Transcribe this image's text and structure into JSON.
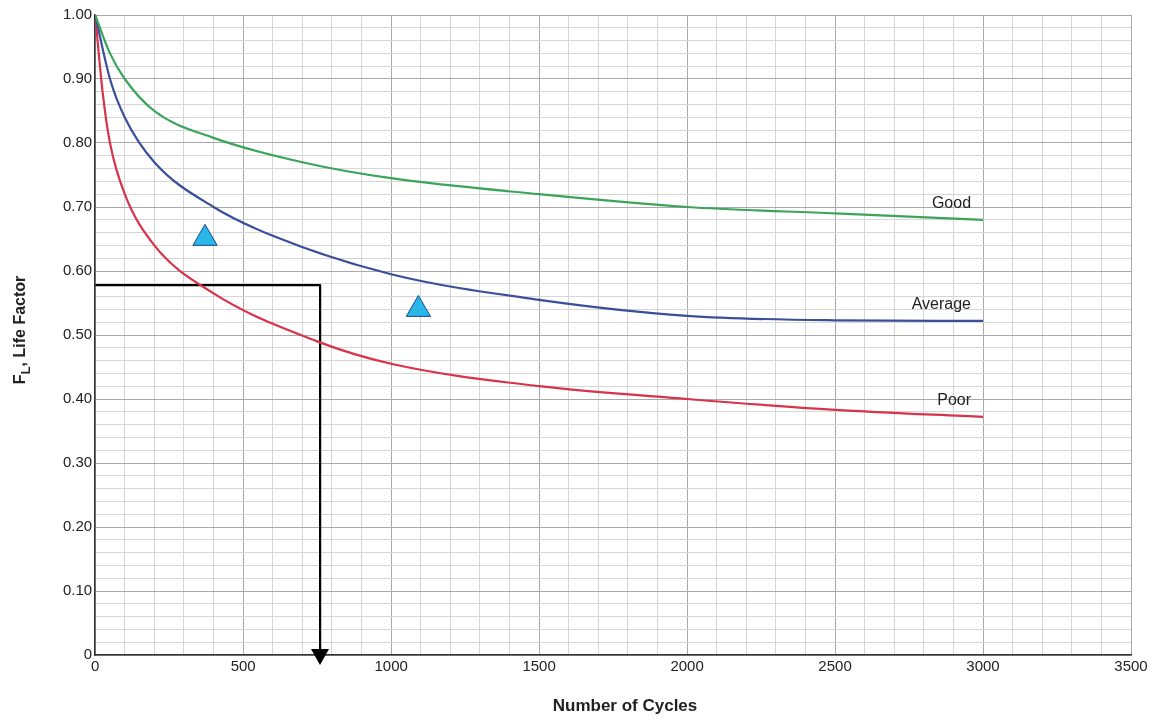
{
  "chart_data": {
    "type": "line",
    "xlabel": "Number of Cycles",
    "ylabel": "F$_{L}$, Life Factor",
    "xlim": [
      0,
      3500
    ],
    "ylim": [
      0,
      1
    ],
    "xticks": [
      0,
      {
        "value": 100,
        "label": null
      },
      {
        "value": 200,
        "label": null
      },
      {
        "value": 300,
        "label": null
      },
      {
        "value": 400,
        "label": null
      },
      500,
      {
        "value": 600,
        "label": null
      },
      {
        "value": 700,
        "label": null
      },
      {
        "value": 800,
        "label": null
      },
      {
        "value": 900,
        "label": null
      },
      1000,
      {
        "value": 1100,
        "label": null
      },
      {
        "value": 1200,
        "label": null
      },
      {
        "value": 1300,
        "label": null
      },
      {
        "value": 1400,
        "label": null
      },
      1500,
      {
        "value": 1600,
        "label": null
      },
      {
        "value": 1700,
        "label": null
      },
      {
        "value": 1800,
        "label": null
      },
      {
        "value": 1900,
        "label": null
      },
      2000,
      {
        "value": 2100,
        "label": null
      },
      {
        "value": 2200,
        "label": null
      },
      {
        "value": 2300,
        "label": null
      },
      {
        "value": 2400,
        "label": null
      },
      2500,
      {
        "value": 2600,
        "label": null
      },
      {
        "value": 2700,
        "label": null
      },
      {
        "value": 2800,
        "label": null
      },
      {
        "value": 2900,
        "label": null
      },
      3000,
      {
        "value": 3100,
        "label": null
      },
      {
        "value": 3200,
        "label": null
      },
      {
        "value": 3300,
        "label": null
      },
      {
        "value": 3400,
        "label": null
      },
      3500
    ],
    "yticks": [
      0,
      {
        "value": 0.02,
        "label": null
      },
      {
        "value": 0.04,
        "label": null
      },
      {
        "value": 0.06,
        "label": null
      },
      {
        "value": 0.08,
        "label": null
      },
      {
        "value": 0.1,
        "label": "0.10"
      },
      {
        "value": 0.12,
        "label": null
      },
      {
        "value": 0.14,
        "label": null
      },
      {
        "value": 0.16,
        "label": null
      },
      {
        "value": 0.18,
        "label": null
      },
      {
        "value": 0.2,
        "label": "0.20"
      },
      {
        "value": 0.22,
        "label": null
      },
      {
        "value": 0.24,
        "label": null
      },
      {
        "value": 0.26,
        "label": null
      },
      {
        "value": 0.28,
        "label": null
      },
      {
        "value": 0.3,
        "label": "0.30"
      },
      {
        "value": 0.32,
        "label": null
      },
      {
        "value": 0.34,
        "label": null
      },
      {
        "value": 0.36,
        "label": null
      },
      {
        "value": 0.38,
        "label": null
      },
      {
        "value": 0.4,
        "label": "0.40"
      },
      {
        "value": 0.42,
        "label": null
      },
      {
        "value": 0.44,
        "label": null
      },
      {
        "value": 0.46,
        "label": null
      },
      {
        "value": 0.48,
        "label": null
      },
      {
        "value": 0.5,
        "label": "0.50"
      },
      {
        "value": 0.52,
        "label": null
      },
      {
        "value": 0.54,
        "label": null
      },
      {
        "value": 0.56,
        "label": null
      },
      {
        "value": 0.58,
        "label": null
      },
      {
        "value": 0.6,
        "label": "0.60"
      },
      {
        "value": 0.62,
        "label": null
      },
      {
        "value": 0.64,
        "label": null
      },
      {
        "value": 0.66,
        "label": null
      },
      {
        "value": 0.68,
        "label": null
      },
      {
        "value": 0.7,
        "label": "0.70"
      },
      {
        "value": 0.72,
        "label": null
      },
      {
        "value": 0.74,
        "label": null
      },
      {
        "value": 0.76,
        "label": null
      },
      {
        "value": 0.78,
        "label": null
      },
      {
        "value": 0.8,
        "label": "0.80"
      },
      {
        "value": 0.82,
        "label": null
      },
      {
        "value": 0.84,
        "label": null
      },
      {
        "value": 0.86,
        "label": null
      },
      {
        "value": 0.88,
        "label": null
      },
      {
        "value": 0.9,
        "label": "0.90"
      },
      {
        "value": 0.92,
        "label": null
      },
      {
        "value": 0.94,
        "label": null
      },
      {
        "value": 0.96,
        "label": null
      },
      {
        "value": 0.98,
        "label": null
      },
      {
        "value": 1,
        "label": "1.00"
      }
    ],
    "grid": true,
    "legend": false,
    "marker": "none",
    "series": [
      {
        "name": "Good",
        "color": "#3aa55a",
        "x": [
          0,
          50,
          100,
          200,
          400,
          700,
          1000,
          1500,
          2000,
          2500,
          3000
        ],
        "values": [
          1.0,
          0.94,
          0.9,
          0.85,
          0.808,
          0.77,
          0.745,
          0.72,
          0.7,
          0.69,
          0.68
        ]
      },
      {
        "name": "Average",
        "color": "#3a4f9a",
        "x": [
          0,
          50,
          100,
          200,
          400,
          600,
          1000,
          1500,
          2000,
          2500,
          3000
        ],
        "values": [
          1.0,
          0.9,
          0.84,
          0.77,
          0.7,
          0.655,
          0.595,
          0.555,
          0.53,
          0.523,
          0.522
        ]
      },
      {
        "name": "Poor",
        "color": "#d8334a",
        "x": [
          0,
          25,
          50,
          100,
          200,
          400,
          750,
          1000,
          1500,
          2000,
          2500,
          3000
        ],
        "values": [
          1.0,
          0.88,
          0.8,
          0.72,
          0.64,
          0.565,
          0.49,
          0.455,
          0.42,
          0.4,
          0.383,
          0.372
        ]
      },
      {
        "color": "#000000",
        "x": [
          0,
          760,
          760
        ],
        "values": [
          0.578,
          0.578,
          0
        ]
      },
      {
        "type": "scatter",
        "marker": "triangle",
        "color": "#29b6e8",
        "x": [
          371,
          1092
        ],
        "values": [
          0.651,
          0.54
        ]
      }
    ]
  }
}
